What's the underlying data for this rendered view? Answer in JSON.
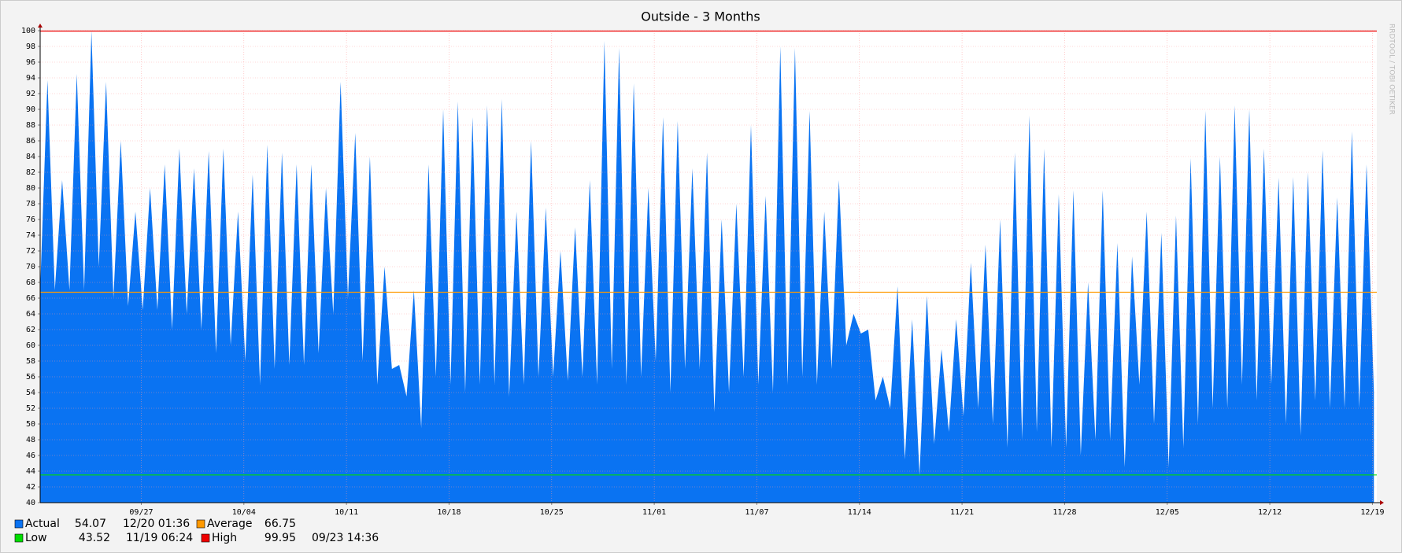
{
  "chart_data": {
    "type": "area",
    "title": "Outside - 3 Months",
    "watermark": "RRDTOOL / TOBI OETIKER",
    "series": [
      {
        "name": "Actual",
        "color": "#0a73f2",
        "current": 54.07,
        "current_time": "12/20 01:36",
        "values": [
          67,
          93.7,
          67,
          81,
          67,
          94.5,
          67,
          99.95,
          70,
          93.5,
          66,
          86,
          65,
          77,
          64.5,
          80,
          64.5,
          83,
          62,
          85,
          64,
          82.5,
          62,
          84.7,
          59,
          85,
          60,
          77,
          58,
          81.7,
          55,
          85.5,
          57,
          84.5,
          57.5,
          83,
          57.5,
          83,
          59,
          80,
          64,
          93.5,
          66,
          87,
          58,
          84,
          55,
          70,
          57,
          57.5,
          53.5,
          67,
          49.5,
          83,
          56,
          90,
          55,
          91,
          54,
          89,
          55,
          90.5,
          55,
          91.3,
          53.5,
          77,
          55,
          86,
          56,
          77.5,
          56,
          72,
          55.5,
          75,
          56,
          81,
          55,
          98.7,
          57,
          97.8,
          55,
          93.3,
          56,
          80,
          58,
          89,
          54,
          88.5,
          57,
          82.5,
          57,
          84.5,
          51.5,
          76,
          54,
          78,
          56,
          88,
          55,
          79,
          54,
          98,
          55,
          97.8,
          56,
          89.8,
          55,
          77,
          57,
          81,
          60,
          64,
          61.5,
          62,
          53,
          56,
          52,
          67.5,
          45.5,
          63.3,
          43.5,
          66.3,
          47.5,
          59.5,
          49,
          63.3,
          51,
          70.5,
          52,
          72.8,
          50,
          76,
          47,
          84.5,
          48,
          89.2,
          49,
          85,
          47,
          79.2,
          47,
          79.7,
          46,
          68,
          48,
          79.7,
          48,
          73,
          44.5,
          71.3,
          55,
          77,
          50,
          74.3,
          44.5,
          76.5,
          47,
          83.8,
          50,
          89.8,
          52,
          84,
          52,
          90.5,
          55,
          90,
          53,
          85,
          55,
          81.3,
          50,
          81.4,
          48.5,
          82,
          53,
          84.8,
          52,
          78.8,
          52,
          87.2,
          52,
          83,
          54.07
        ]
      }
    ],
    "hrules": [
      {
        "name": "Average",
        "color": "#ff9900",
        "value": 66.75
      },
      {
        "name": "Low",
        "color": "#00dd00",
        "value": 43.52,
        "time": "11/19 06:24"
      },
      {
        "name": "High",
        "color": "#ee0000",
        "value": 99.95,
        "time": "09/23 14:36"
      }
    ],
    "xlim": [
      0,
      182.4
    ],
    "xticks": [
      {
        "value": 13.8,
        "label": "09/27"
      },
      {
        "value": 27.8,
        "label": "10/04"
      },
      {
        "value": 41.8,
        "label": "10/11"
      },
      {
        "value": 55.8,
        "label": "10/18"
      },
      {
        "value": 69.8,
        "label": "10/25"
      },
      {
        "value": 83.8,
        "label": "11/01"
      },
      {
        "value": 97.8,
        "label": "11/07"
      },
      {
        "value": 111.8,
        "label": "11/14"
      },
      {
        "value": 125.8,
        "label": "11/21"
      },
      {
        "value": 139.8,
        "label": "11/28"
      },
      {
        "value": 153.8,
        "label": "12/05"
      },
      {
        "value": 167.8,
        "label": "12/12"
      },
      {
        "value": 181.8,
        "label": "12/19"
      }
    ],
    "ylim": [
      40,
      100
    ],
    "yticks": [
      40,
      42,
      44,
      46,
      48,
      50,
      52,
      54,
      56,
      58,
      60,
      62,
      64,
      66,
      68,
      70,
      72,
      74,
      76,
      78,
      80,
      82,
      84,
      86,
      88,
      90,
      92,
      94,
      96,
      98,
      100
    ],
    "grid": true
  }
}
